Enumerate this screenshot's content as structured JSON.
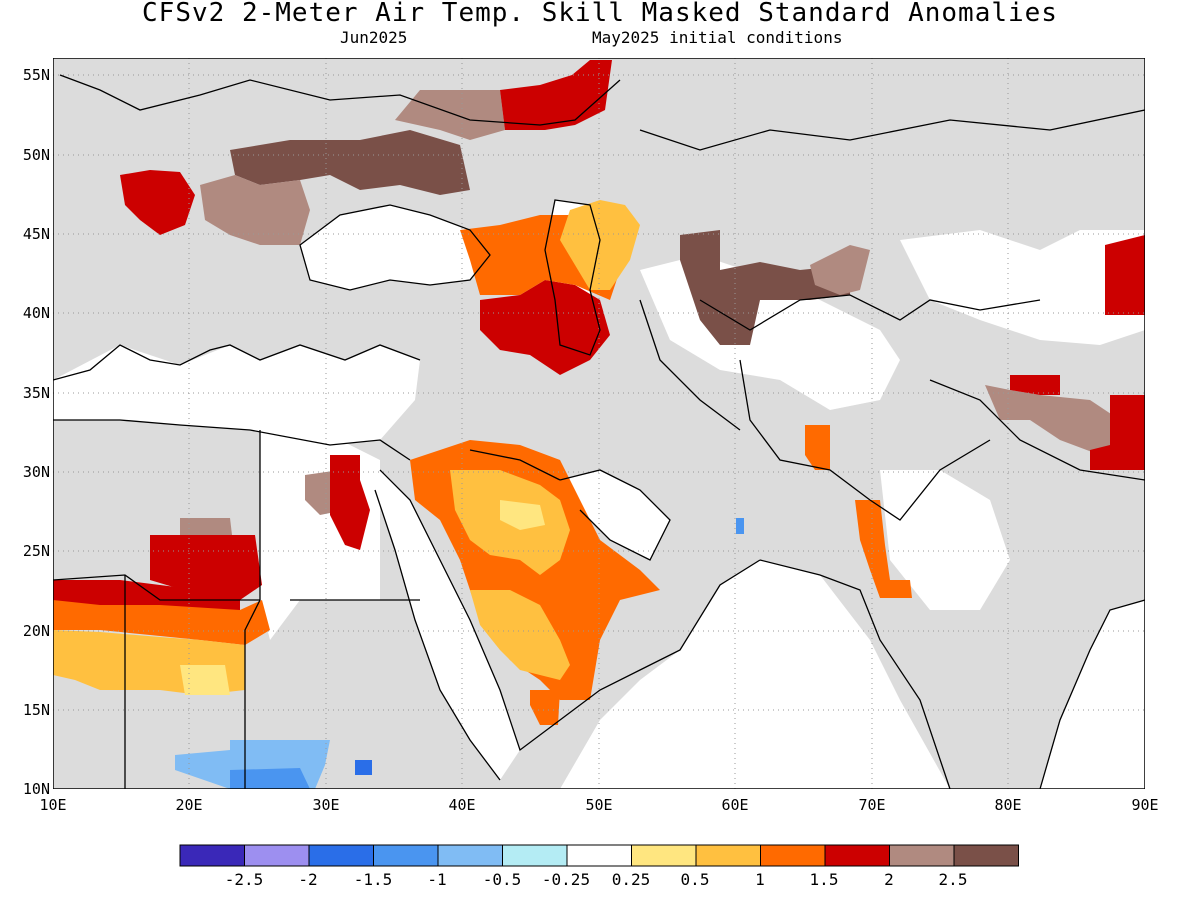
{
  "header": {
    "title": "CFSv2 2-Meter Air Temp. Skill Masked Standard Anomalies",
    "valid_month": "Jun2025",
    "initial_conditions": "May2025 initial conditions"
  },
  "map": {
    "lon_range": [
      10,
      90
    ],
    "lat_range": [
      10,
      56
    ],
    "lat_labels": [
      "55N",
      "50N",
      "45N",
      "40N",
      "35N",
      "30N",
      "25N",
      "20N",
      "15N",
      "10N"
    ],
    "lon_labels": [
      "10E",
      "20E",
      "30E",
      "40E",
      "50E",
      "60E",
      "70E",
      "80E",
      "90E"
    ],
    "lat_ticks": [
      55,
      50,
      45,
      40,
      35,
      30,
      25,
      20,
      15,
      10
    ],
    "lon_ticks": [
      10,
      20,
      30,
      40,
      50,
      60,
      70,
      80,
      90
    ],
    "grid": "dotted",
    "masked_color": "#dcdcdc",
    "ocean_color": "#ffffff"
  },
  "colorbar": {
    "colors": [
      "#3a28b8",
      "#9d8ff0",
      "#2a6ee8",
      "#4a95f0",
      "#80bcf4",
      "#b4ecf4",
      "#ffffff",
      "#ffe680",
      "#ffc040",
      "#ff6a00",
      "#cc0000",
      "#b08a80",
      "#7a5048"
    ],
    "labels": [
      "-2.5",
      "-2",
      "-1.5",
      "-1",
      "-0.5",
      "-0.25",
      "0.25",
      "0.5",
      "1",
      "1.5",
      "2",
      "2.5"
    ]
  }
}
